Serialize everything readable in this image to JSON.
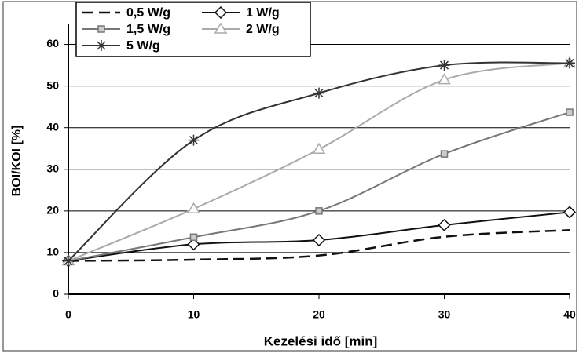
{
  "chart_data": {
    "type": "line",
    "x_label": "Kezelési idő [min]",
    "y_label": "BOI/KOI [%]",
    "x": [
      0,
      10,
      20,
      30,
      40
    ],
    "xlim": [
      0,
      40
    ],
    "xticks": [
      0,
      10,
      20,
      30,
      40
    ],
    "ylim": [
      0,
      65
    ],
    "yticks": [
      0,
      10,
      20,
      30,
      40,
      50,
      60
    ],
    "grid": true,
    "legend": "top-left",
    "series": [
      {
        "name": "0,5 W/g",
        "color": "#111111",
        "marker": "none",
        "dash": true,
        "values": [
          8,
          8.3,
          9.3,
          13.8,
          15.4
        ]
      },
      {
        "name": "1 W/g",
        "color": "#111111",
        "marker": "diamond",
        "values": [
          8,
          12,
          13,
          16.6,
          19.7
        ]
      },
      {
        "name": "1,5 W/g",
        "color": "#777777",
        "marker": "square",
        "values": [
          8,
          13.7,
          20,
          33.7,
          43.7
        ]
      },
      {
        "name": "2 W/g",
        "color": "#aaaaaa",
        "marker": "triangle",
        "values": [
          8,
          20.5,
          34.8,
          51.5,
          55.5
        ]
      },
      {
        "name": "5 W/g",
        "color": "#333333",
        "marker": "asterisk",
        "values": [
          8,
          37,
          48.3,
          55,
          55.5
        ]
      }
    ]
  }
}
